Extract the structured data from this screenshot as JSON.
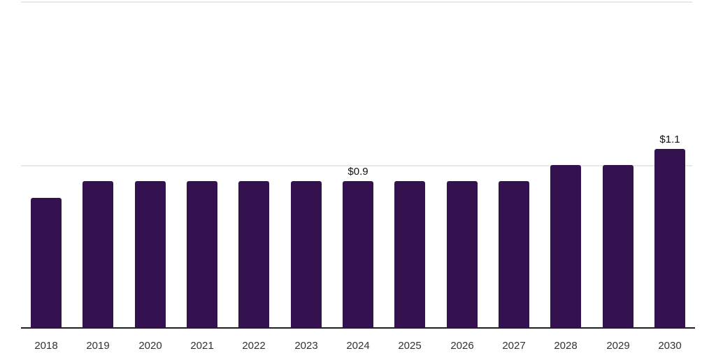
{
  "chart_data": {
    "type": "bar",
    "title": "",
    "xlabel": "",
    "ylabel": "",
    "categories": [
      "2018",
      "2019",
      "2020",
      "2021",
      "2022",
      "2023",
      "2024",
      "2025",
      "2026",
      "2027",
      "2028",
      "2029",
      "2030"
    ],
    "values": [
      0.8,
      0.9,
      0.9,
      0.9,
      0.9,
      0.9,
      0.9,
      0.9,
      0.9,
      0.9,
      1.0,
      1.0,
      1.1
    ],
    "value_labels": [
      {
        "index": 6,
        "text": "$0.9"
      },
      {
        "index": 12,
        "text": "$1.1"
      }
    ],
    "ylim": [
      0,
      2.0
    ],
    "gridlines_y": [
      1.0,
      2.0
    ],
    "grid": "horizontal-only",
    "legend": "none",
    "colors": {
      "bar": "#341250",
      "gridline": "#e9e9e9",
      "axis": "#1f1f1f",
      "tick_label": "#333333",
      "value_label": "#111111",
      "background": "#ffffff"
    }
  }
}
